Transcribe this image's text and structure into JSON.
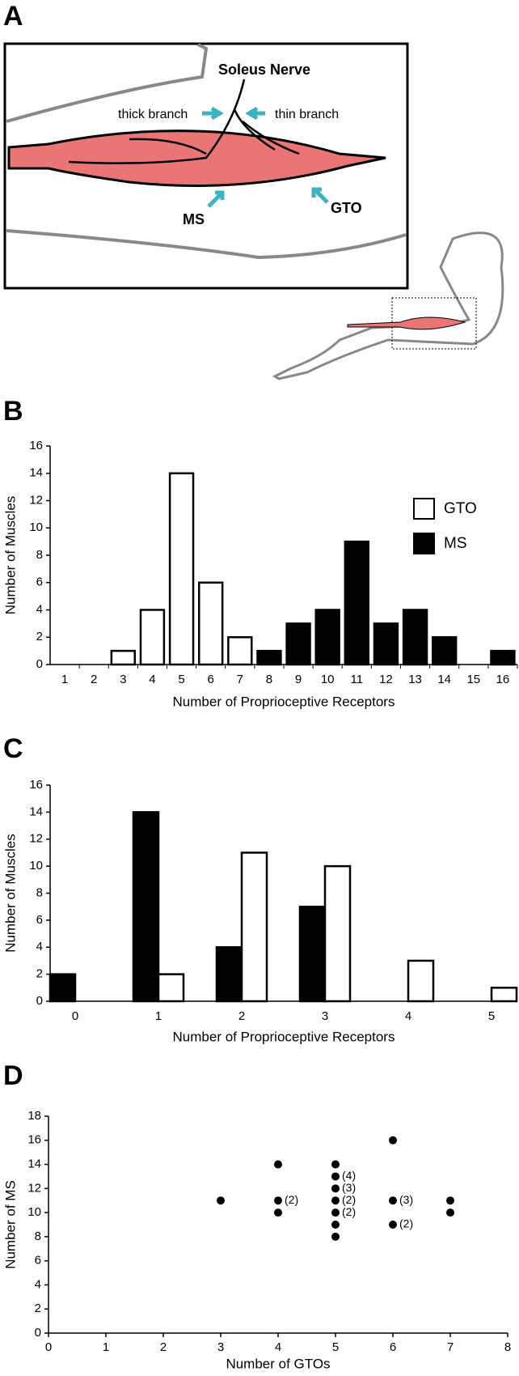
{
  "panel_a": {
    "label": "A",
    "nerve": "Soleus Nerve",
    "thick": "thick branch",
    "thin": "thin branch",
    "ms": "MS",
    "gto": "GTO"
  },
  "chart_data": [
    {
      "type": "bar",
      "panel_label": "B",
      "xlabel": "Number of Proprioceptive Receptors",
      "ylabel": "Number of Muscles",
      "categories": [
        "1",
        "2",
        "3",
        "4",
        "5",
        "6",
        "7",
        "8",
        "9",
        "10",
        "11",
        "12",
        "13",
        "14",
        "15",
        "16"
      ],
      "series": [
        {
          "name": "GTO",
          "color": "#ffffff",
          "values": [
            0,
            0,
            1,
            4,
            14,
            6,
            2,
            0,
            0,
            0,
            0,
            0,
            0,
            0,
            0,
            0
          ]
        },
        {
          "name": "MS",
          "color": "#000000",
          "values": [
            0,
            0,
            0,
            0,
            0,
            0,
            0,
            1,
            3,
            4,
            9,
            3,
            4,
            2,
            0,
            1
          ]
        }
      ],
      "ylim": [
        0,
        16
      ],
      "yticks": [
        0,
        2,
        4,
        6,
        8,
        10,
        12,
        14,
        16
      ],
      "legend": "right"
    },
    {
      "type": "bar",
      "panel_label": "C",
      "xlabel": "Number of Proprioceptive Receptors",
      "ylabel": "Number of Muscles",
      "categories": [
        "0",
        "1",
        "2",
        "3",
        "4",
        "5"
      ],
      "series": [
        {
          "color": "#000000",
          "values": [
            2,
            14,
            4,
            7,
            0,
            0
          ]
        },
        {
          "color": "#ffffff",
          "values": [
            0,
            2,
            11,
            10,
            3,
            1
          ]
        }
      ],
      "ylim": [
        0,
        16
      ],
      "yticks": [
        0,
        2,
        4,
        6,
        8,
        10,
        12,
        14,
        16
      ]
    },
    {
      "type": "scatter",
      "panel_label": "D",
      "xlabel": "Number of GTOs",
      "ylabel": "Number of MS",
      "x": [
        3,
        4,
        4,
        4,
        5,
        5,
        5,
        5,
        5,
        5,
        5,
        6,
        6,
        6,
        7,
        7
      ],
      "values": [
        11,
        14,
        11,
        10,
        14,
        13,
        12,
        11,
        10,
        9,
        8,
        16,
        11,
        9,
        11,
        10
      ],
      "point_labels": [
        null,
        null,
        "(2)",
        null,
        null,
        "(4)",
        "(3)",
        "(2)",
        "(2)",
        null,
        null,
        null,
        "(3)",
        "(2)",
        null,
        null
      ],
      "color": "#000000",
      "xlim": [
        0,
        8
      ],
      "xticks": [
        0,
        1,
        2,
        3,
        4,
        5,
        6,
        7,
        8
      ],
      "ylim": [
        0,
        18
      ],
      "yticks": [
        0,
        2,
        4,
        6,
        8,
        10,
        12,
        14,
        16,
        18
      ]
    }
  ]
}
